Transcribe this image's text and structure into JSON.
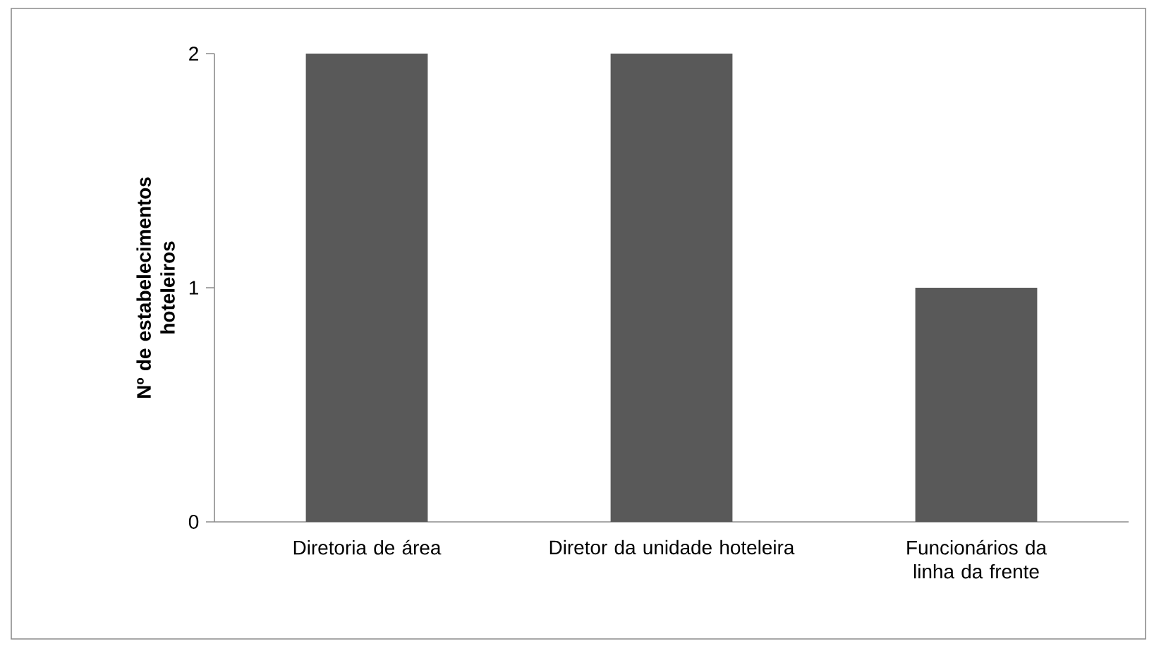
{
  "chart_data": {
    "type": "bar",
    "ylabel": "Nº de estabelecimentos hoteleiros",
    "categories": [
      "Diretoria de área",
      "Diretor da unidade hoteleira",
      "Funcionários da linha da frente"
    ],
    "values": [
      2,
      2,
      1
    ],
    "color": "#595959",
    "ylim": [
      0,
      2
    ],
    "yticks": [
      0,
      1,
      2
    ]
  }
}
